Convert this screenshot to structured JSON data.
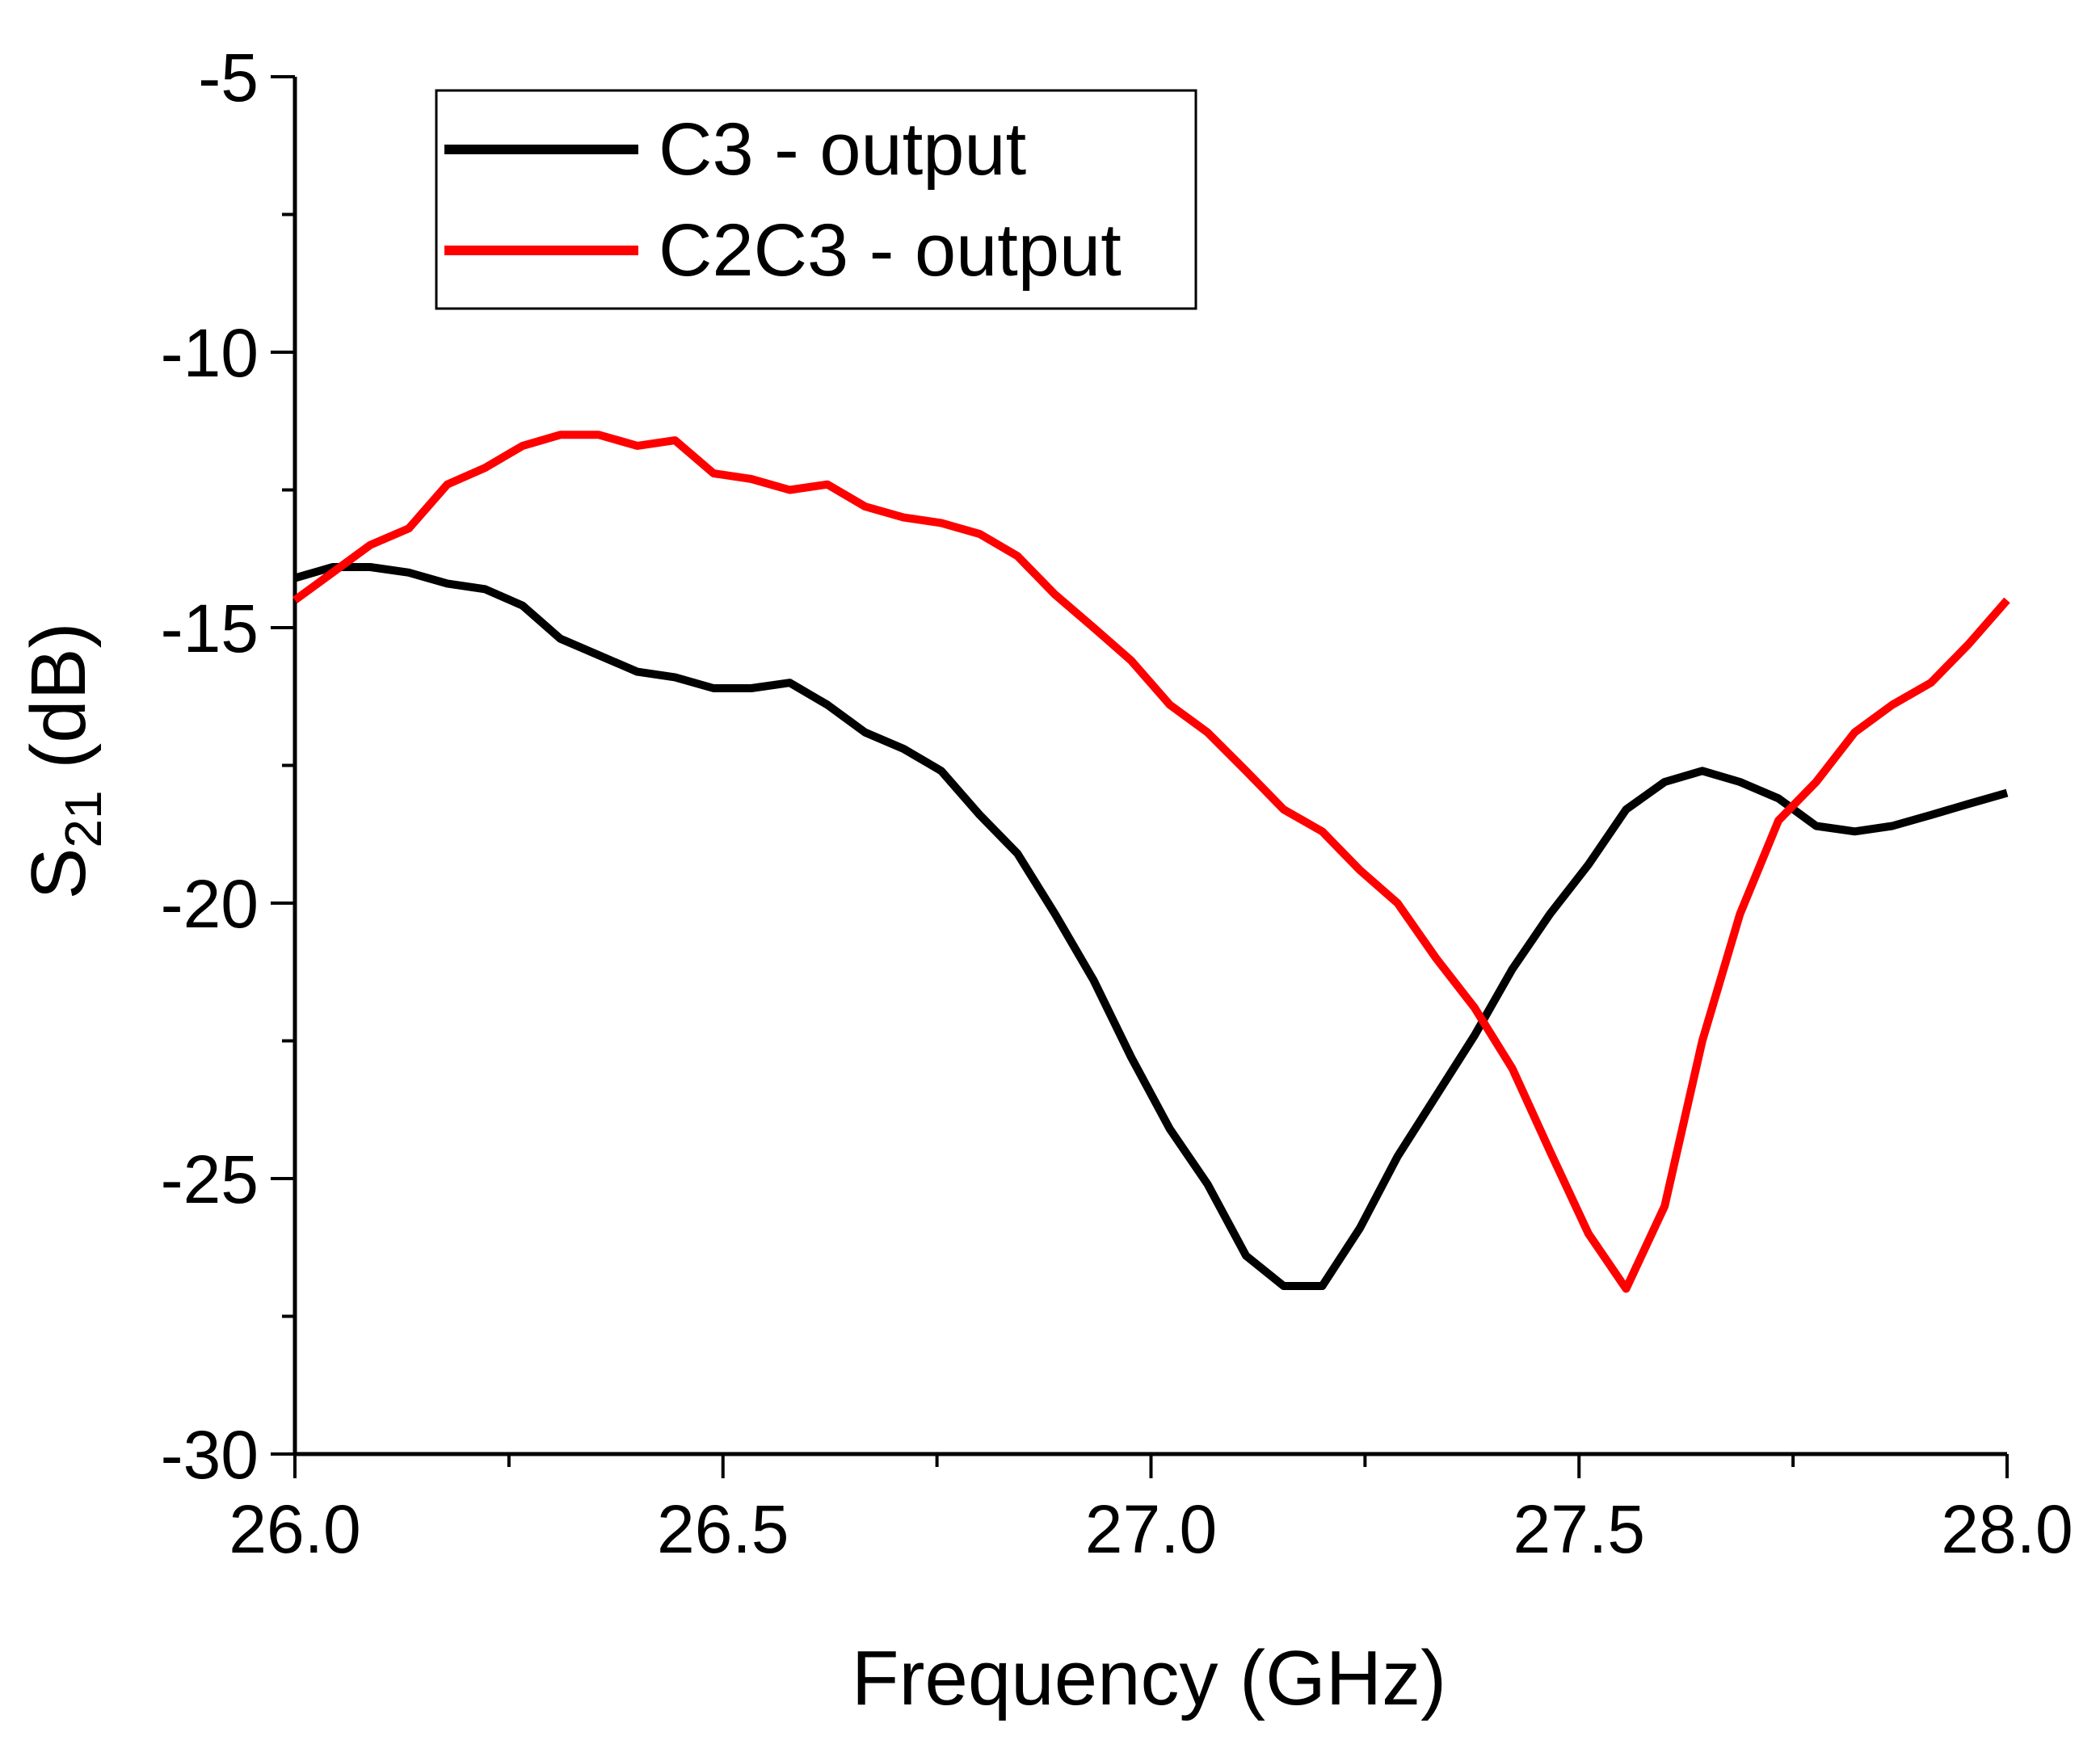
{
  "chart_data": {
    "type": "line",
    "xlabel": "Frequency (GHz)",
    "ylabel": {
      "main": "S",
      "sub": "21",
      "suffix": " (dB)"
    },
    "xlim": [
      26.0,
      28.0
    ],
    "ylim": [
      -30,
      -5
    ],
    "xticks": [
      26.0,
      26.5,
      27.0,
      27.5,
      28.0
    ],
    "xtick_labels": [
      "26.0",
      "26.5",
      "27.0",
      "27.5",
      "28.0"
    ],
    "xminor_step": 0.25,
    "yticks": [
      -30,
      -25,
      -20,
      -15,
      -10,
      -5
    ],
    "ytick_labels": [
      "-30",
      "-25",
      "-20",
      "-15",
      "-10",
      "-5"
    ],
    "yminor_step": 2.5,
    "grid": false,
    "legend_position": "top-left",
    "series": [
      {
        "name": "C3 - output",
        "color": "#000000",
        "x": [
          26.0,
          26.044,
          26.088,
          26.133,
          26.178,
          26.222,
          26.266,
          26.31,
          26.355,
          26.4,
          26.444,
          26.489,
          26.533,
          26.578,
          26.622,
          26.666,
          26.711,
          26.755,
          26.8,
          26.844,
          26.888,
          26.933,
          26.977,
          27.022,
          27.066,
          27.111,
          27.155,
          27.2,
          27.244,
          27.288,
          27.333,
          27.378,
          27.422,
          27.466,
          27.511,
          27.555,
          27.6,
          27.644,
          27.688,
          27.733,
          27.777,
          27.822,
          27.866,
          27.911,
          27.955,
          28.0
        ],
        "y": [
          -14.1,
          -13.9,
          -13.9,
          -14.0,
          -14.2,
          -14.3,
          -14.6,
          -15.2,
          -15.5,
          -15.8,
          -15.9,
          -16.1,
          -16.1,
          -16.0,
          -16.4,
          -16.9,
          -17.2,
          -17.6,
          -18.4,
          -19.1,
          -20.2,
          -21.4,
          -22.8,
          -24.1,
          -25.1,
          -26.4,
          -26.95,
          -26.95,
          -25.9,
          -24.6,
          -23.5,
          -22.4,
          -21.2,
          -20.2,
          -19.3,
          -18.3,
          -17.8,
          -17.6,
          -17.8,
          -18.1,
          -18.6,
          -18.7,
          -18.6,
          -18.4,
          -18.2,
          -18.0
        ]
      },
      {
        "name": "C2C3 - output",
        "color": "#ff0000",
        "x": [
          26.0,
          26.044,
          26.088,
          26.133,
          26.178,
          26.222,
          26.266,
          26.31,
          26.355,
          26.4,
          26.444,
          26.489,
          26.533,
          26.578,
          26.622,
          26.666,
          26.711,
          26.755,
          26.8,
          26.844,
          26.888,
          26.933,
          26.977,
          27.022,
          27.066,
          27.111,
          27.155,
          27.2,
          27.244,
          27.288,
          27.333,
          27.378,
          27.422,
          27.466,
          27.511,
          27.555,
          27.6,
          27.644,
          27.688,
          27.733,
          27.777,
          27.822,
          27.866,
          27.911,
          27.955,
          28.0
        ],
        "y": [
          -14.5,
          -14.0,
          -13.5,
          -13.2,
          -12.4,
          -12.1,
          -11.7,
          -11.5,
          -11.5,
          -11.7,
          -11.6,
          -12.2,
          -12.3,
          -12.5,
          -12.4,
          -12.8,
          -13.0,
          -13.1,
          -13.3,
          -13.7,
          -14.4,
          -15.0,
          -15.6,
          -16.4,
          -16.9,
          -17.6,
          -18.3,
          -18.7,
          -19.4,
          -20.0,
          -21.0,
          -21.9,
          -23.0,
          -24.5,
          -26.0,
          -27.0,
          -25.5,
          -22.5,
          -20.2,
          -18.5,
          -17.8,
          -16.9,
          -16.4,
          -16.0,
          -15.3,
          -14.5
        ]
      }
    ]
  }
}
